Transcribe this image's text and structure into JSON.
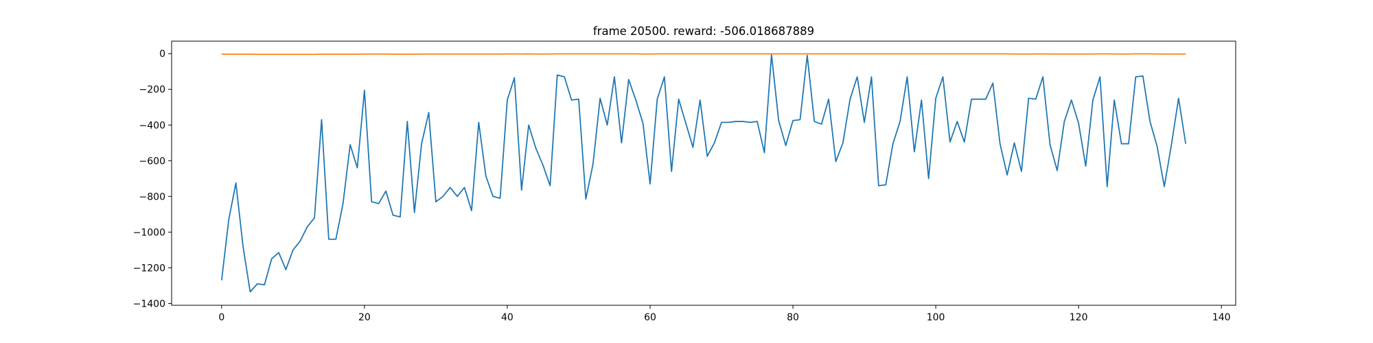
{
  "chart_data": {
    "type": "line",
    "title": "frame 20500. reward: -506.018687889",
    "xlabel": "",
    "ylabel": "",
    "xlim": [
      -7,
      142
    ],
    "ylim": [
      -1410,
      70
    ],
    "x_ticks": [
      0,
      20,
      40,
      60,
      80,
      100,
      120,
      140
    ],
    "y_ticks": [
      0,
      -200,
      -400,
      -600,
      -800,
      -1000,
      -1200,
      -1400
    ],
    "grid": false,
    "series": [
      {
        "color": "#1f77b4",
        "x_start": 0,
        "values": [
          -1270,
          -930,
          -725,
          -1080,
          -1335,
          -1290,
          -1295,
          -1150,
          -1115,
          -1210,
          -1100,
          -1050,
          -970,
          -920,
          -370,
          -1040,
          -1040,
          -840,
          -510,
          -640,
          -205,
          -830,
          -840,
          -770,
          -905,
          -915,
          -380,
          -890,
          -505,
          -330,
          -830,
          -800,
          -750,
          -800,
          -750,
          -880,
          -385,
          -685,
          -800,
          -810,
          -260,
          -135,
          -765,
          -400,
          -530,
          -625,
          -740,
          -120,
          -130,
          -260,
          -255,
          -815,
          -620,
          -250,
          -400,
          -130,
          -500,
          -145,
          -260,
          -390,
          -730,
          -255,
          -130,
          -660,
          -255,
          -390,
          -525,
          -260,
          -575,
          -500,
          -385,
          -385,
          -380,
          -380,
          -385,
          -380,
          -555,
          -5,
          -375,
          -515,
          -375,
          -370,
          -10,
          -380,
          -395,
          -255,
          -605,
          -500,
          -255,
          -130,
          -385,
          -130,
          -740,
          -735,
          -505,
          -380,
          -130,
          -550,
          -260,
          -700,
          -250,
          -130,
          -495,
          -380,
          -495,
          -255,
          -255,
          -255,
          -165,
          -505,
          -680,
          -500,
          -660,
          -250,
          -255,
          -130,
          -510,
          -655,
          -380,
          -260,
          -390,
          -630,
          -260,
          -130,
          -745,
          -260,
          -505,
          -505,
          -130,
          -125,
          -380,
          -520,
          -745,
          -510,
          -250,
          -505
        ]
      },
      {
        "color": "#ff7f0e",
        "x_start": 0,
        "values": [
          -3,
          -3,
          -3,
          -3,
          -3,
          -4,
          -4,
          -4,
          -4,
          -4,
          -4,
          -4,
          -4,
          -4,
          -3,
          -3,
          -3,
          -3,
          -3,
          -3,
          -2,
          -2,
          -2,
          -2,
          -3,
          -3,
          -3,
          -3,
          -2,
          -2,
          -2,
          -2,
          -2,
          -2,
          -2,
          -2,
          -2,
          -2,
          -2,
          -2,
          -2,
          -1,
          -2,
          -1,
          -2,
          -2,
          -2,
          -1,
          -1,
          -1,
          -1,
          -1,
          -1,
          -1,
          -1,
          -1,
          -1,
          -1,
          -1,
          -2,
          -2,
          -1,
          -1,
          -1,
          -1,
          -1,
          -1,
          -1,
          -1,
          -1,
          -1,
          -1,
          -1,
          -1,
          -1,
          -1,
          -1,
          -1,
          -1,
          -1,
          -1,
          -1,
          -1,
          -1,
          -1,
          -1,
          -1,
          -1,
          -1,
          -1,
          -1,
          -1,
          -1,
          -1,
          -1,
          -1,
          -1,
          -1,
          -1,
          -1,
          -1,
          -1,
          -1,
          -1,
          -1,
          -1,
          -1,
          -1,
          -1,
          -1,
          -1,
          -2,
          -2,
          -2,
          -2,
          -1,
          -2,
          -2,
          -2,
          -2,
          -2,
          -2,
          -2,
          -1,
          -1,
          -2,
          -2,
          -2,
          -1,
          -1,
          -1,
          -2,
          -2,
          -2,
          -2,
          -2
        ]
      }
    ]
  }
}
